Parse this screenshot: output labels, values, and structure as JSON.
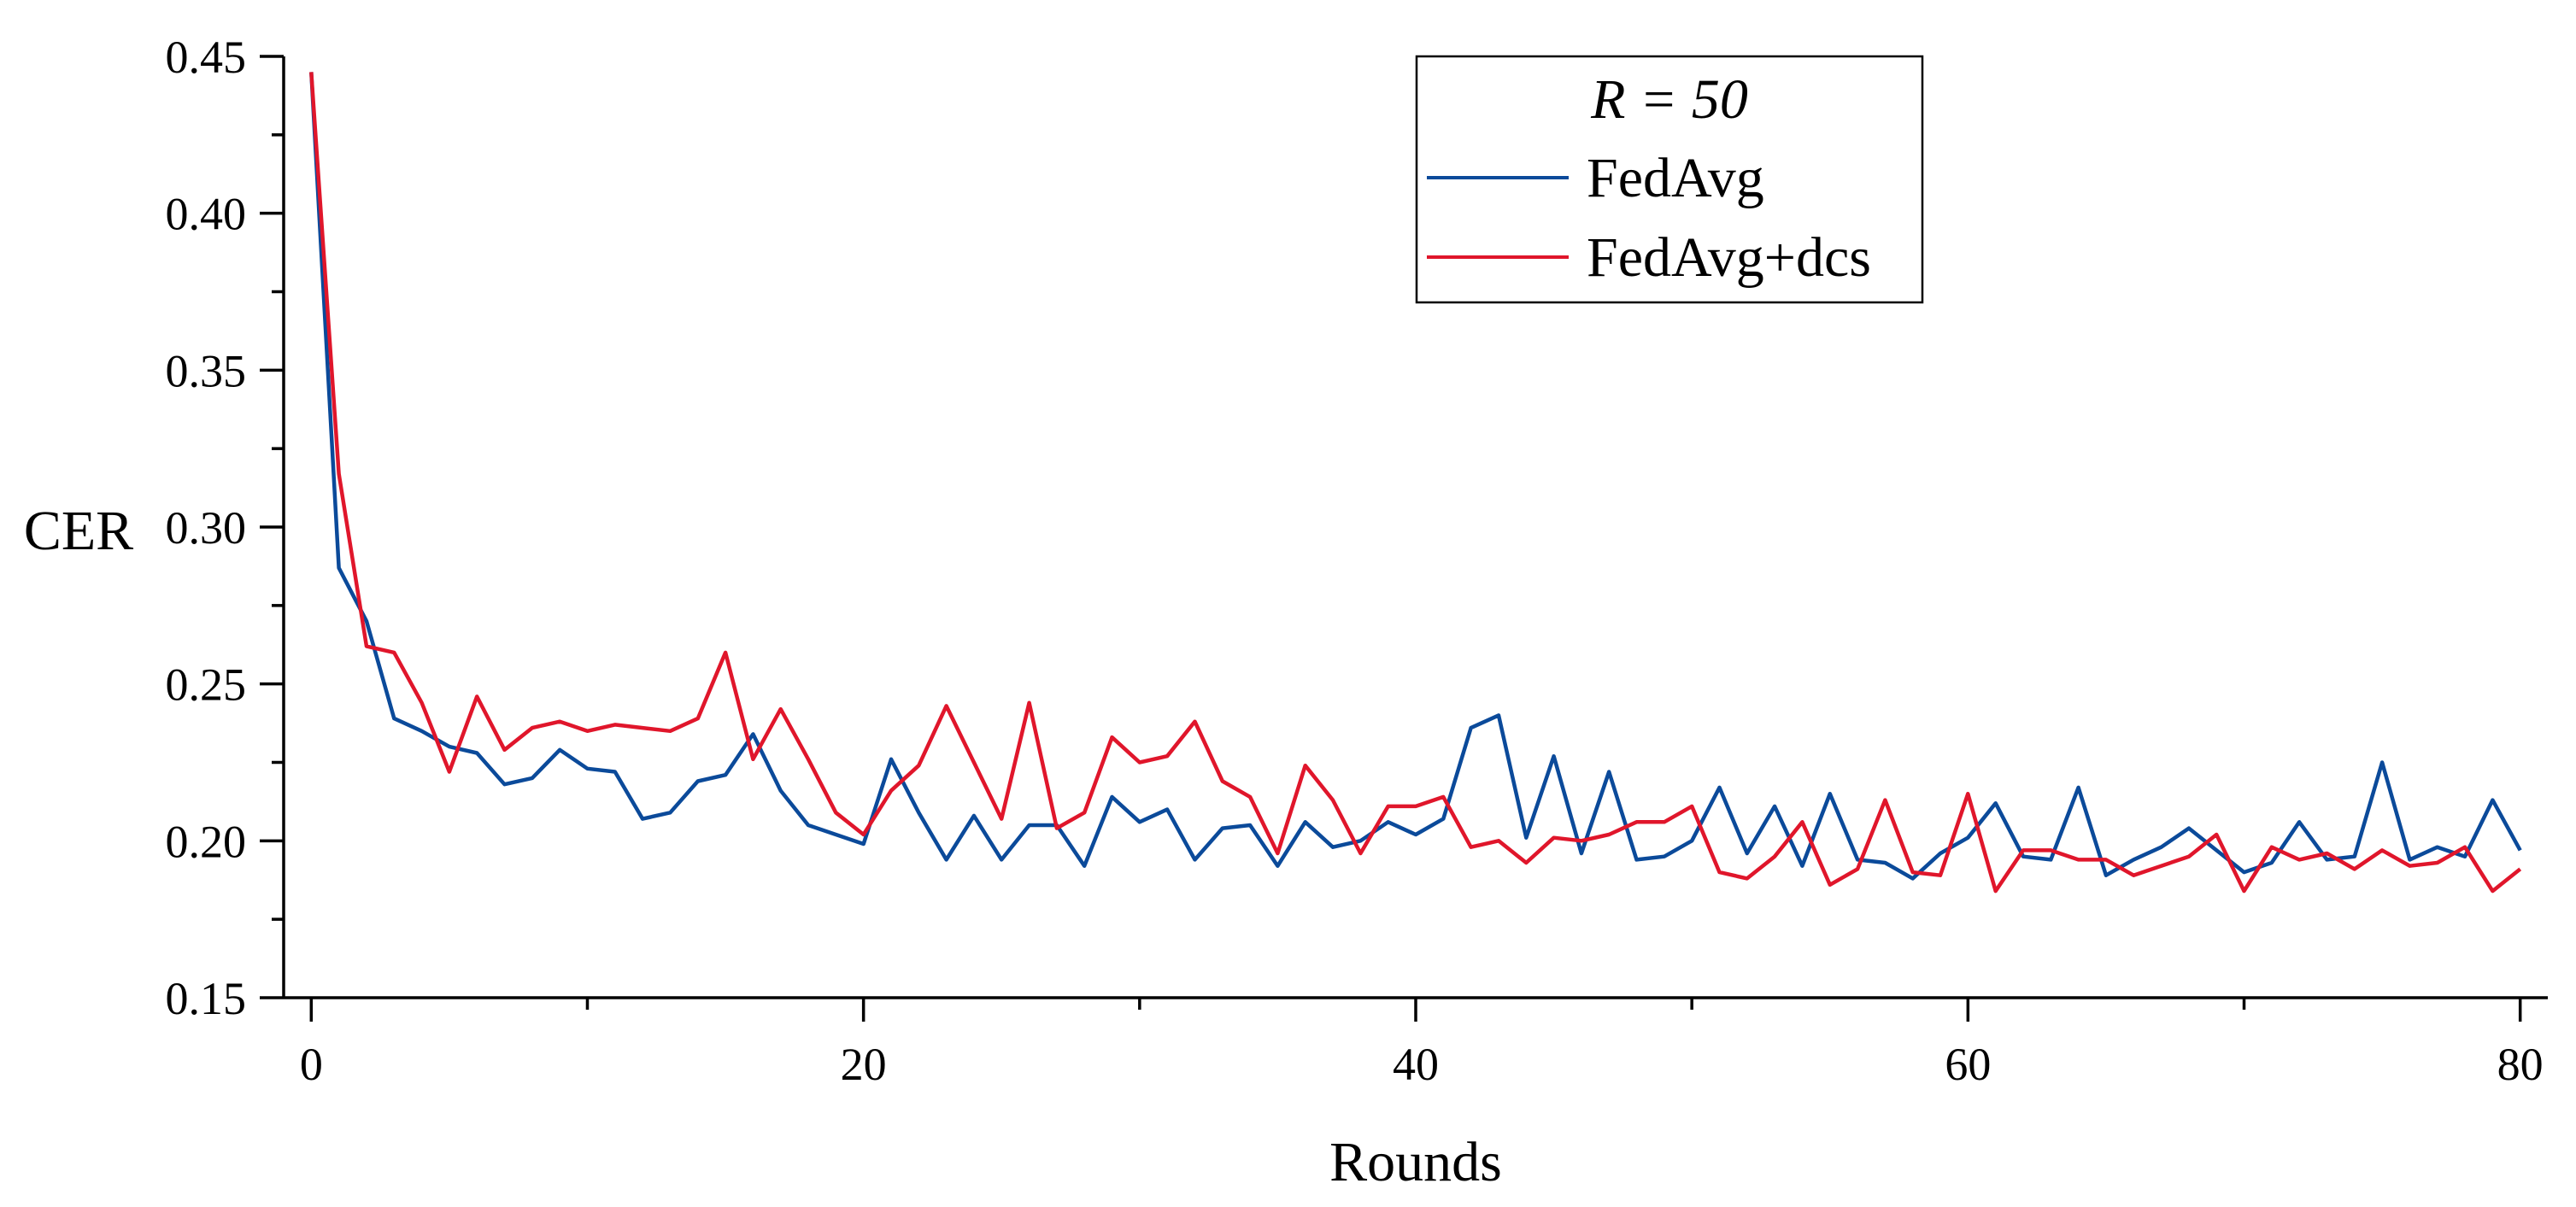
{
  "chart_data": {
    "type": "line",
    "title": "",
    "xlabel": "Rounds",
    "ylabel": "CER",
    "xlim": [
      -1,
      81
    ],
    "ylim": [
      0.15,
      0.45
    ],
    "xticks": [
      0,
      20,
      40,
      60,
      80
    ],
    "xtick_labels": [
      "0",
      "20",
      "40",
      "60",
      "80"
    ],
    "yticks": [
      0.15,
      0.2,
      0.25,
      0.3,
      0.35,
      0.4,
      0.45
    ],
    "ytick_labels": [
      "0.15",
      "0.20",
      "0.25",
      "0.30",
      "0.35",
      "0.40",
      "0.45"
    ],
    "grid": false,
    "legend": {
      "title": "R = 50",
      "placement": "top-center",
      "entries": [
        "FedAvg",
        "FedAvg+dcs"
      ]
    },
    "x": [
      0,
      1,
      2,
      3,
      4,
      5,
      6,
      7,
      8,
      9,
      10,
      11,
      12,
      13,
      14,
      15,
      16,
      17,
      18,
      19,
      20,
      21,
      22,
      23,
      24,
      25,
      26,
      27,
      28,
      29,
      30,
      31,
      32,
      33,
      34,
      35,
      36,
      37,
      38,
      39,
      40,
      41,
      42,
      43,
      44,
      45,
      46,
      47,
      48,
      49,
      50,
      51,
      52,
      53,
      54,
      55,
      56,
      57,
      58,
      59,
      60,
      61,
      62,
      63,
      64,
      65,
      66,
      67,
      68,
      69,
      70,
      71,
      72,
      73,
      74,
      75,
      76,
      77,
      78,
      79,
      80
    ],
    "series": [
      {
        "name": "FedAvg",
        "color": "#0b4a9a",
        "values": [
          0.445,
          0.287,
          0.27,
          0.239,
          0.235,
          0.23,
          0.228,
          0.218,
          0.22,
          0.229,
          0.223,
          0.222,
          0.207,
          0.209,
          0.219,
          0.221,
          0.234,
          0.216,
          0.205,
          0.202,
          0.199,
          0.226,
          0.209,
          0.194,
          0.208,
          0.194,
          0.205,
          0.205,
          0.192,
          0.214,
          0.206,
          0.21,
          0.194,
          0.204,
          0.205,
          0.192,
          0.206,
          0.198,
          0.2,
          0.206,
          0.202,
          0.207,
          0.236,
          0.24,
          0.201,
          0.227,
          0.196,
          0.222,
          0.194,
          0.195,
          0.2,
          0.217,
          0.196,
          0.211,
          0.192,
          0.215,
          0.194,
          0.193,
          0.188,
          0.196,
          0.201,
          0.212,
          0.195,
          0.194,
          0.217,
          0.189,
          0.194,
          0.198,
          0.204,
          0.197,
          0.19,
          0.193,
          0.206,
          0.194,
          0.195,
          0.225,
          0.194,
          0.198,
          0.195,
          0.213,
          0.197
        ]
      },
      {
        "name": "FedAvg+dcs",
        "color": "#e0162b",
        "values": [
          0.445,
          0.317,
          0.262,
          0.26,
          0.244,
          0.222,
          0.246,
          0.229,
          0.236,
          0.238,
          0.235,
          0.237,
          0.236,
          0.235,
          0.239,
          0.26,
          0.226,
          0.242,
          0.226,
          0.209,
          0.202,
          0.216,
          0.224,
          0.243,
          0.225,
          0.207,
          0.244,
          0.204,
          0.209,
          0.233,
          0.225,
          0.227,
          0.238,
          0.219,
          0.214,
          0.196,
          0.224,
          0.213,
          0.196,
          0.211,
          0.211,
          0.214,
          0.198,
          0.2,
          0.193,
          0.201,
          0.2,
          0.202,
          0.206,
          0.206,
          0.211,
          0.19,
          0.188,
          0.195,
          0.206,
          0.186,
          0.191,
          0.213,
          0.19,
          0.189,
          0.215,
          0.184,
          0.197,
          0.197,
          0.194,
          0.194,
          0.189,
          0.192,
          0.195,
          0.202,
          0.184,
          0.198,
          0.194,
          0.196,
          0.191,
          0.197,
          0.192,
          0.193,
          0.198,
          0.184,
          0.191
        ]
      }
    ]
  }
}
